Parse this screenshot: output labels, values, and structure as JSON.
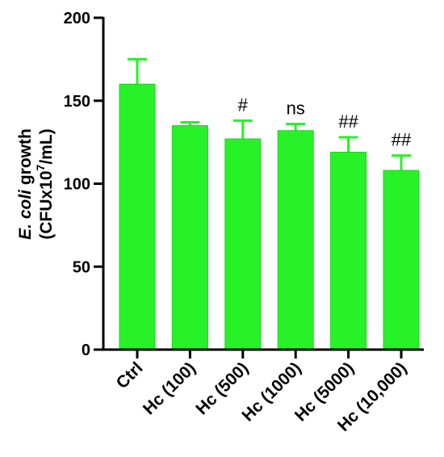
{
  "chart_data": {
    "type": "bar",
    "ylabel_line1_italic": "E. coli",
    "ylabel_line1_rest": " growth",
    "ylabel_line2_pre": "(CFUx10",
    "ylabel_line2_sup": "7",
    "ylabel_line2_post": "/mL)",
    "ylim": [
      0,
      200
    ],
    "yticks": [
      0,
      50,
      100,
      150,
      200
    ],
    "categories": [
      "Ctrl",
      "Hc (100)",
      "Hc (500)",
      "Hc (1000)",
      "Hc (5000)",
      "Hc (10,000)"
    ],
    "values": [
      160,
      135,
      127,
      132,
      119,
      108
    ],
    "errors": [
      15,
      2,
      11,
      4,
      9,
      9
    ],
    "annotations": [
      "",
      "",
      "#",
      "ns",
      "##",
      "##"
    ],
    "bar_color": "#27f227",
    "bar_edge_color": "#1ad61a",
    "grid": false,
    "legend": "none"
  }
}
